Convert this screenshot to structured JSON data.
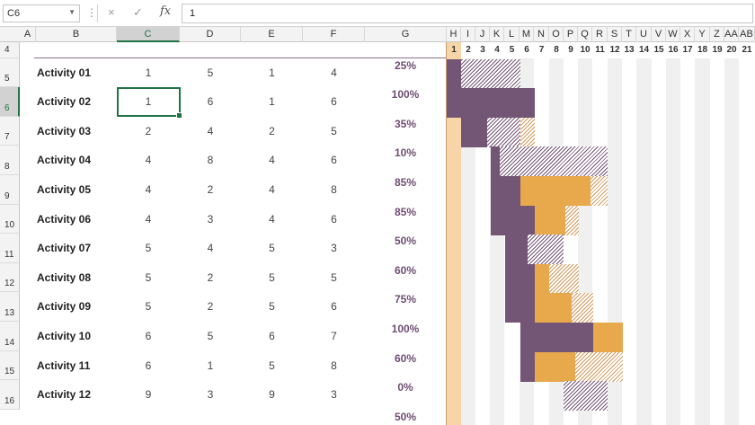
{
  "formula_bar": {
    "name_box": "C6",
    "cancel_icon": "×",
    "enter_icon": "✓",
    "fx_label": "fx",
    "formula_value": "1"
  },
  "column_headers": [
    "A",
    "B",
    "C",
    "D",
    "E",
    "F",
    "G",
    "H",
    "I",
    "J",
    "K",
    "L",
    "M",
    "N",
    "O",
    "P",
    "Q",
    "R",
    "S",
    "T",
    "U",
    "V",
    "W",
    "X",
    "Y",
    "Z",
    "AA",
    "AB"
  ],
  "row_numbers": [
    "4",
    "5",
    "6",
    "7",
    "8",
    "9",
    "10",
    "11",
    "12",
    "13",
    "14",
    "15",
    "16"
  ],
  "day_numbers": [
    "1",
    "2",
    "3",
    "4",
    "5",
    "6",
    "7",
    "8",
    "9",
    "10",
    "11",
    "12",
    "13",
    "14",
    "15",
    "16",
    "17",
    "18",
    "19",
    "20",
    "21"
  ],
  "activities": [
    {
      "name": "Activity 01",
      "c": "1",
      "d": "5",
      "e": "1",
      "f": "4",
      "pct": "25%"
    },
    {
      "name": "Activity 02",
      "c": "1",
      "d": "6",
      "e": "1",
      "f": "6",
      "pct": "100%"
    },
    {
      "name": "Activity 03",
      "c": "2",
      "d": "4",
      "e": "2",
      "f": "5",
      "pct": "35%"
    },
    {
      "name": "Activity 04",
      "c": "4",
      "d": "8",
      "e": "4",
      "f": "6",
      "pct": "10%"
    },
    {
      "name": "Activity 05",
      "c": "4",
      "d": "2",
      "e": "4",
      "f": "8",
      "pct": "85%"
    },
    {
      "name": "Activity 06",
      "c": "4",
      "d": "3",
      "e": "4",
      "f": "6",
      "pct": "85%"
    },
    {
      "name": "Activity 07",
      "c": "5",
      "d": "4",
      "e": "5",
      "f": "3",
      "pct": "50%"
    },
    {
      "name": "Activity 08",
      "c": "5",
      "d": "2",
      "e": "5",
      "f": "5",
      "pct": "60%"
    },
    {
      "name": "Activity 09",
      "c": "5",
      "d": "2",
      "e": "5",
      "f": "6",
      "pct": "75%"
    },
    {
      "name": "Activity 10",
      "c": "6",
      "d": "5",
      "e": "6",
      "f": "7",
      "pct": "100%"
    },
    {
      "name": "Activity 11",
      "c": "6",
      "d": "1",
      "e": "5",
      "f": "8",
      "pct": "60%"
    },
    {
      "name": "Activity 12",
      "c": "9",
      "d": "3",
      "e": "9",
      "f": "3",
      "pct": "0%"
    },
    {
      "name": "",
      "c": "",
      "d": "",
      "e": "",
      "f": "",
      "pct": "50%"
    }
  ],
  "colors": {
    "plan_dark": "#735675",
    "actual_orange": "#e8a84c",
    "current_day": "#f8d5a8",
    "percent_text": "#6e4e72",
    "selection": "#217346"
  }
}
